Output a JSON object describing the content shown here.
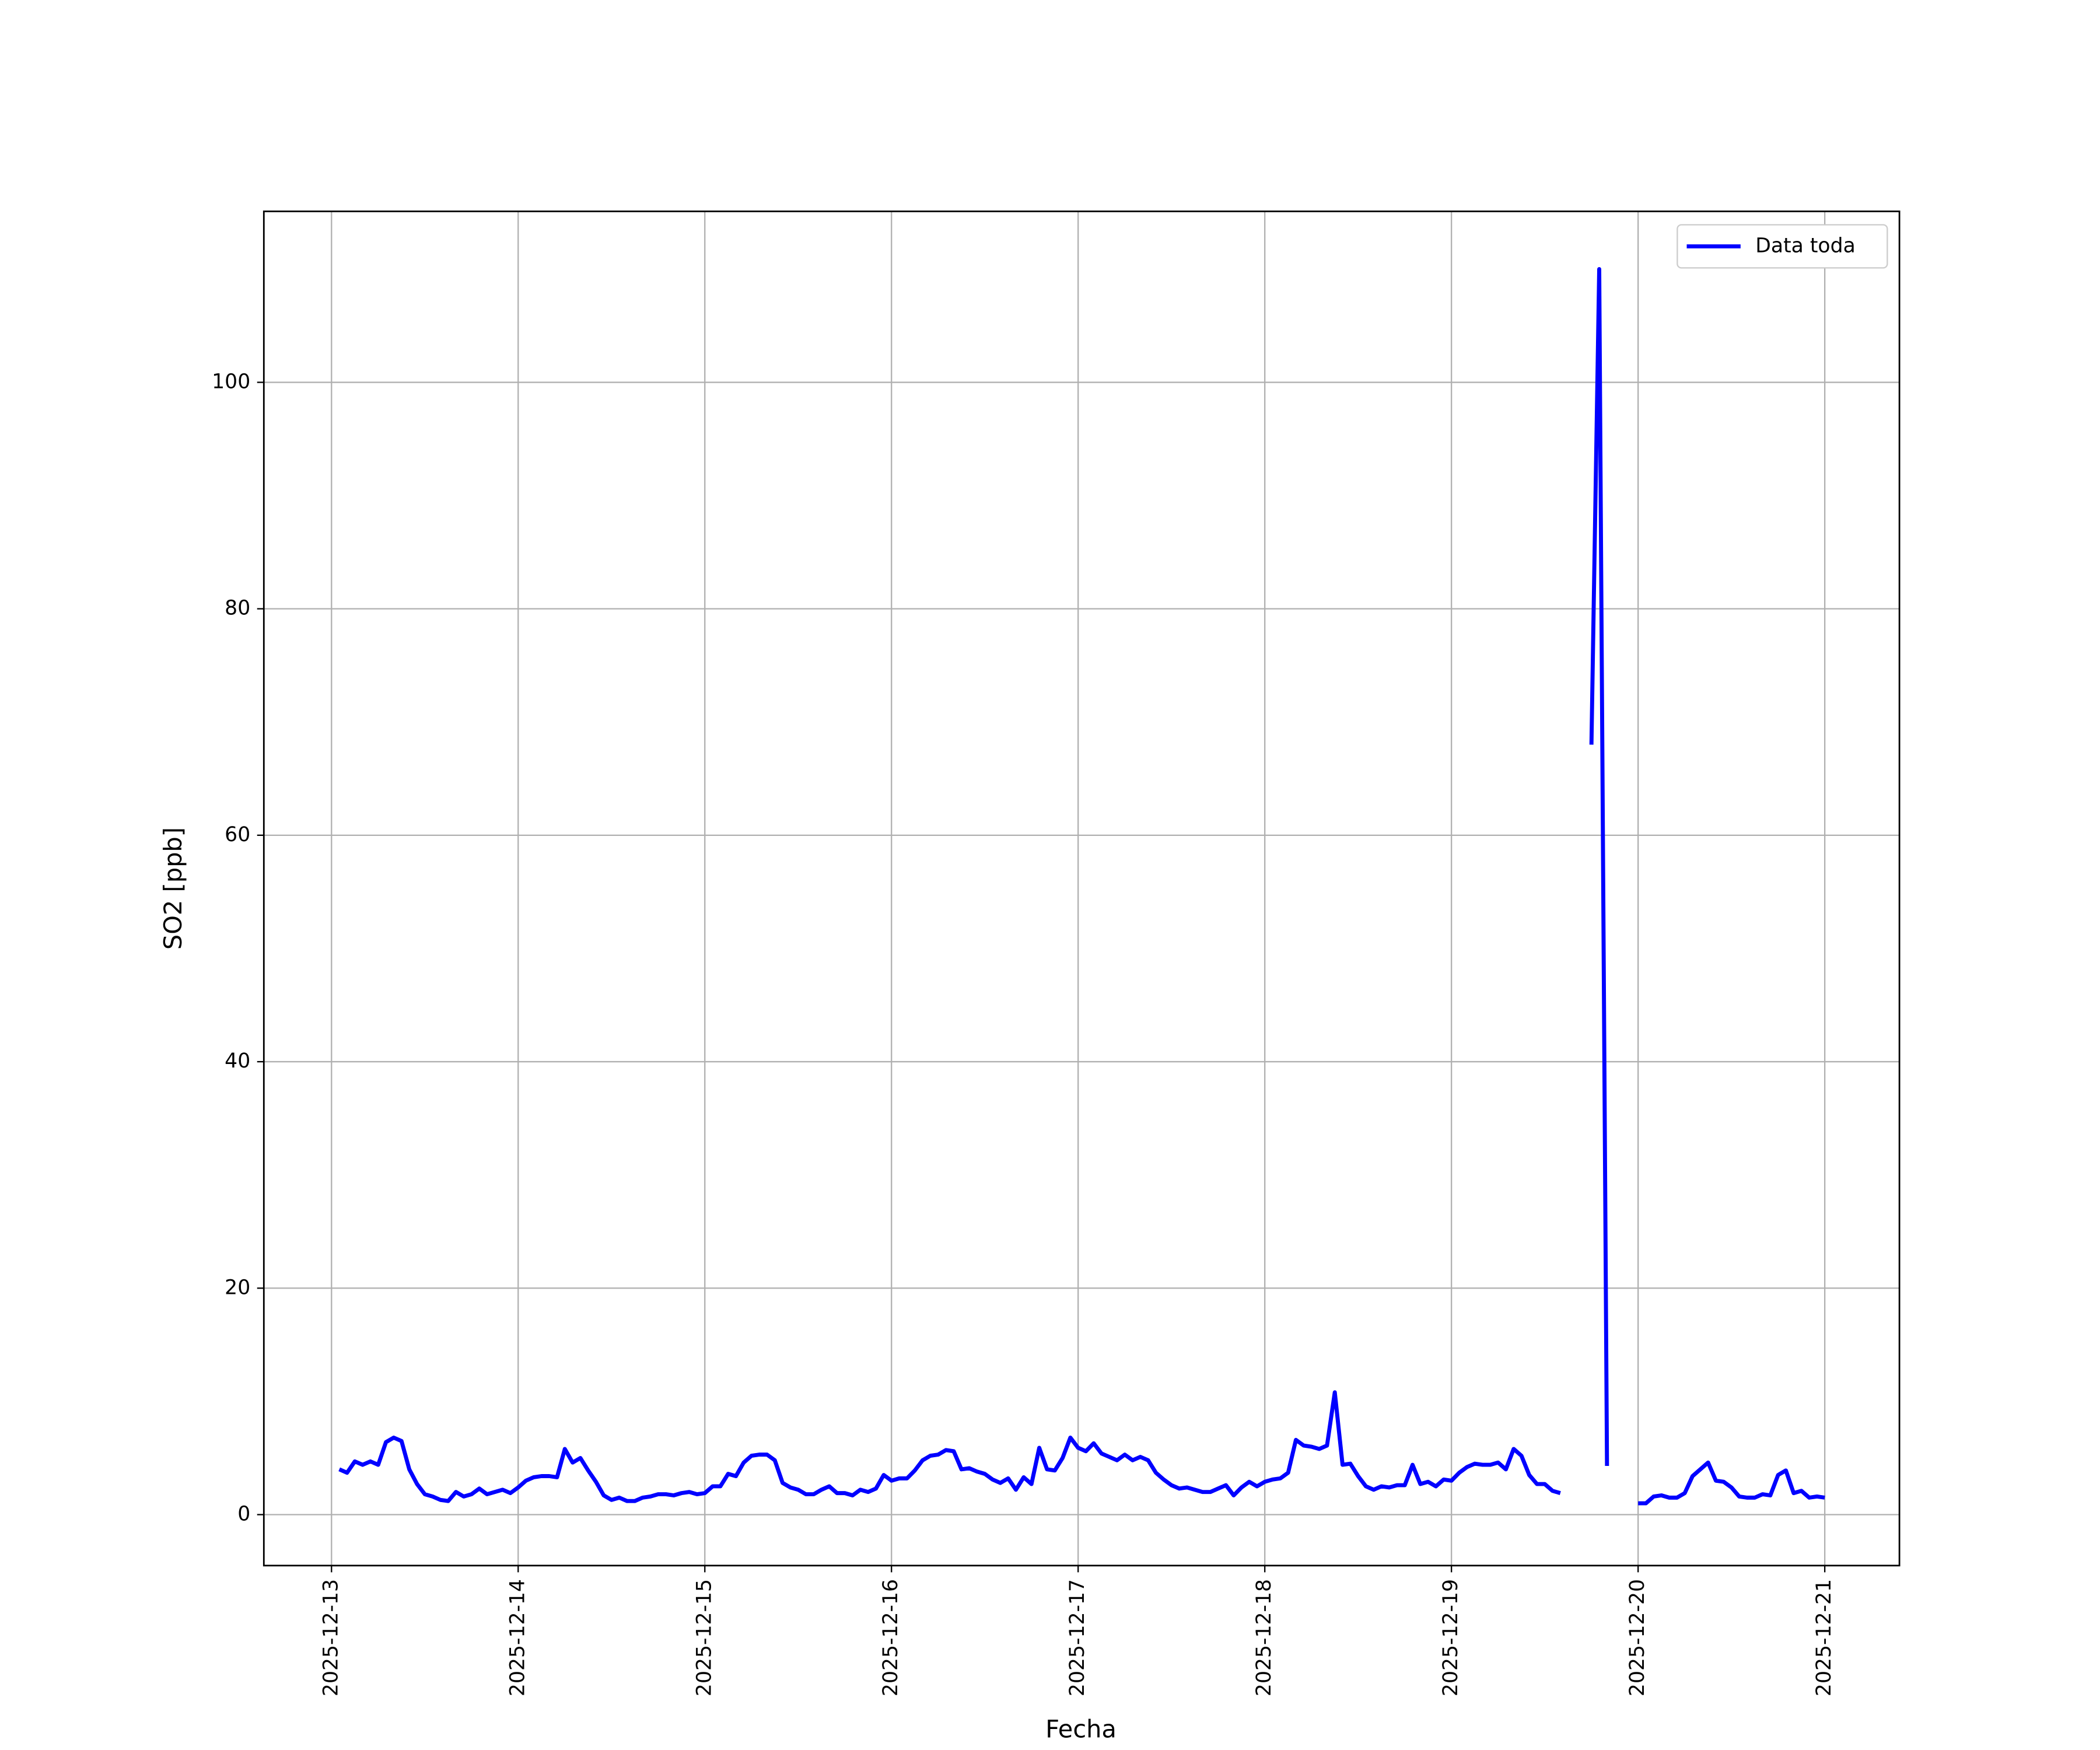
{
  "chart_data": {
    "type": "line",
    "x_label": "Fecha",
    "y_label": "SO2 [ppb]",
    "x": [
      1,
      2,
      3,
      4,
      5,
      6,
      7,
      8,
      9,
      10,
      11,
      12,
      13,
      14,
      15,
      16,
      17,
      18,
      19,
      20,
      21,
      22,
      23,
      24,
      25,
      26,
      27,
      28,
      29,
      30,
      31,
      32,
      33,
      34,
      35,
      36,
      37,
      38,
      39,
      40,
      41,
      42,
      43,
      44,
      45,
      46,
      47,
      48,
      49,
      50,
      51,
      52,
      53,
      54,
      55,
      56,
      57,
      58,
      59,
      60,
      61,
      62,
      63,
      64,
      65,
      66,
      67,
      68,
      69,
      70,
      71,
      72,
      73,
      74,
      75,
      76,
      77,
      78,
      79,
      80,
      81,
      82,
      83,
      84,
      85,
      86,
      87,
      88,
      89,
      90,
      91,
      92,
      93,
      94,
      95,
      96,
      97,
      98,
      99,
      100,
      101,
      102,
      103,
      104,
      105,
      106,
      107,
      108,
      109,
      110,
      111,
      112,
      113,
      114,
      115,
      116,
      117,
      118,
      119,
      120,
      121,
      122,
      123,
      124,
      125,
      126,
      127,
      128,
      129,
      130,
      131,
      132,
      133,
      134,
      135,
      136,
      137,
      138,
      139,
      140,
      141,
      142,
      143,
      144,
      145,
      146,
      147,
      148,
      149,
      150,
      151,
      152,
      153,
      154,
      155,
      156,
      157,
      158,
      159,
      160,
      161,
      162,
      163,
      164,
      165,
      166,
      167,
      168,
      169,
      170,
      171,
      172,
      173,
      174,
      175,
      176,
      177,
      178,
      179,
      180,
      181,
      182,
      183,
      184,
      185,
      186,
      187,
      188,
      189,
      190,
      191,
      192
    ],
    "series": [
      {
        "name": "Data toda",
        "color": "#0000ff",
        "values": [
          4.0,
          3.7,
          4.7,
          4.4,
          4.7,
          4.4,
          6.4,
          6.8,
          6.5,
          4.0,
          2.7,
          1.8,
          1.6,
          1.3,
          1.2,
          2.0,
          1.6,
          1.8,
          2.3,
          1.8,
          2.0,
          2.2,
          1.9,
          2.4,
          3.0,
          3.3,
          3.4,
          3.4,
          3.3,
          5.8,
          4.6,
          5.0,
          3.9,
          2.9,
          1.7,
          1.3,
          1.5,
          1.2,
          1.2,
          1.5,
          1.6,
          1.8,
          1.8,
          1.7,
          1.9,
          2.0,
          1.8,
          1.9,
          2.5,
          2.5,
          3.6,
          3.4,
          4.6,
          5.2,
          5.3,
          5.3,
          4.8,
          2.8,
          2.4,
          2.2,
          1.8,
          1.8,
          2.2,
          2.5,
          1.9,
          1.9,
          1.7,
          2.2,
          2.0,
          2.3,
          3.5,
          3.0,
          3.2,
          3.2,
          3.9,
          4.8,
          5.2,
          5.3,
          5.7,
          5.6,
          4.0,
          4.1,
          3.8,
          3.6,
          3.1,
          2.8,
          3.2,
          2.2,
          3.3,
          2.7,
          5.9,
          4.0,
          3.9,
          5.0,
          6.8,
          5.9,
          5.6,
          6.3,
          5.4,
          5.1,
          4.8,
          5.3,
          4.8,
          5.1,
          4.8,
          3.7,
          3.1,
          2.6,
          2.3,
          2.4,
          2.2,
          2.0,
          2.0,
          2.3,
          2.6,
          1.7,
          2.4,
          2.9,
          2.5,
          2.9,
          3.1,
          3.2,
          3.7,
          6.6,
          6.1,
          6.0,
          5.8,
          6.1,
          10.8,
          4.4,
          4.5,
          3.4,
          2.5,
          2.2,
          2.5,
          2.4,
          2.6,
          2.6,
          4.4,
          2.7,
          2.9,
          2.5,
          3.1,
          3.0,
          3.7,
          4.2,
          4.5,
          4.4,
          4.4,
          4.6,
          4.0,
          5.8,
          5.2,
          3.5,
          2.7,
          2.7,
          2.1,
          1.9,
          null,
          null,
          null,
          68,
          110,
          4.3,
          null,
          null,
          null,
          1.0,
          1.0,
          1.6,
          1.7,
          1.5,
          1.5,
          1.9,
          3.4,
          4.0,
          4.6,
          3.0,
          2.9,
          2.4,
          1.6,
          1.5,
          1.5,
          1.8,
          1.7,
          3.5,
          3.9,
          1.9,
          2.1,
          1.5,
          1.6,
          1.5
        ]
      }
    ],
    "xlim": [
      -8.7,
      201.6
    ],
    "xticks": [
      {
        "value": 0,
        "label": "2025-12-13"
      },
      {
        "value": 24,
        "label": "2025-12-14"
      },
      {
        "value": 48,
        "label": "2025-12-15"
      },
      {
        "value": 72,
        "label": "2025-12-16"
      },
      {
        "value": 96,
        "label": "2025-12-17"
      },
      {
        "value": 120,
        "label": "2025-12-18"
      },
      {
        "value": 144,
        "label": "2025-12-19"
      },
      {
        "value": 168,
        "label": "2025-12-20"
      },
      {
        "value": 192,
        "label": "2025-12-21"
      }
    ],
    "ylim": [
      -4.5,
      115.1
    ],
    "yticks": [
      0,
      20,
      40,
      60,
      80,
      100
    ],
    "grid": true,
    "legend": "upper right"
  }
}
